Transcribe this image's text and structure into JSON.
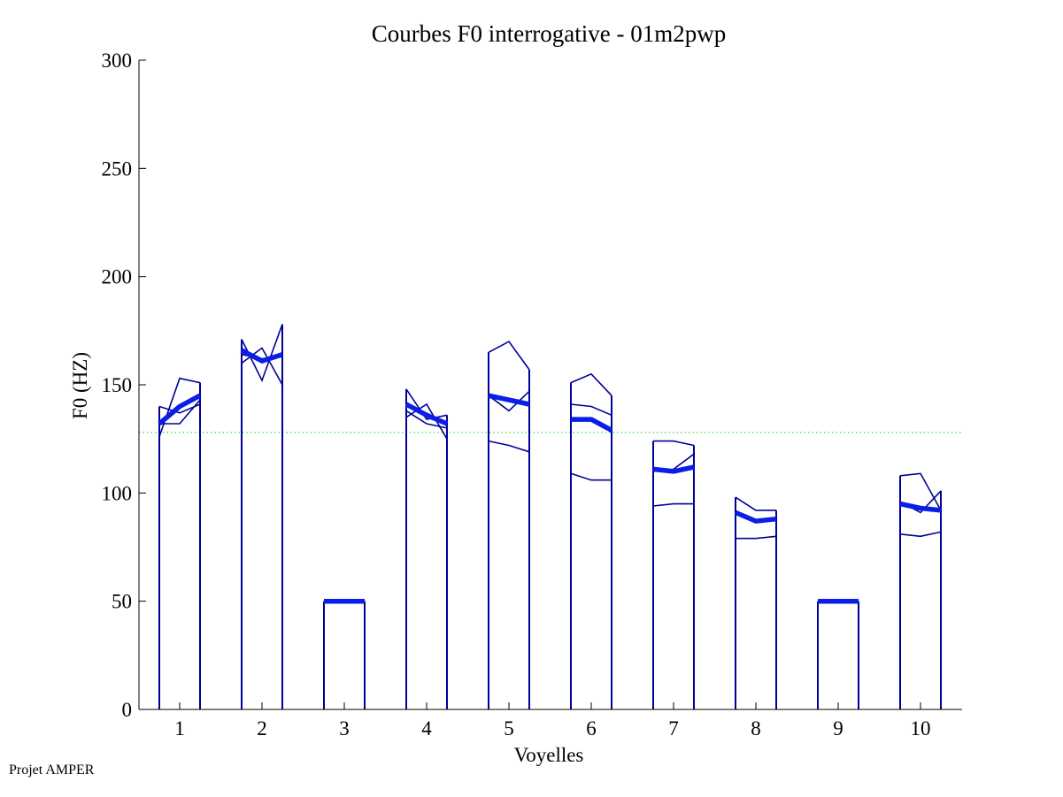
{
  "colors": {
    "contour": "#000099",
    "mean": "#0a1ee6",
    "reference": "#00cc00",
    "axis": "#000000"
  },
  "footer": "Projet AMPER",
  "chart_data": {
    "type": "line",
    "title": "Courbes F0 interrogative - 01m2pwp",
    "xlabel": "Voyelles",
    "ylabel": "F0 (HZ)",
    "ylim": [
      0,
      300
    ],
    "yticks": [
      0,
      50,
      100,
      150,
      200,
      250,
      300
    ],
    "categories": [
      "1",
      "2",
      "3",
      "4",
      "5",
      "6",
      "7",
      "8",
      "9",
      "10"
    ],
    "reference_line": 128,
    "grid": false,
    "vowels": [
      {
        "label": "1",
        "mean": [
          132,
          140,
          145
        ],
        "contours": [
          [
            140,
            137,
            141
          ],
          [
            126,
            153,
            151
          ],
          [
            132,
            132,
            143
          ]
        ]
      },
      {
        "label": "2",
        "mean": [
          166,
          161,
          164
        ],
        "contours": [
          [
            171,
            152,
            178
          ],
          [
            160,
            167,
            150
          ],
          [
            164,
            162,
            163
          ]
        ]
      },
      {
        "label": "3",
        "mean": [
          50,
          50,
          50
        ],
        "contours": [
          [
            50,
            50,
            50
          ]
        ]
      },
      {
        "label": "4",
        "mean": [
          141,
          136,
          132
        ],
        "contours": [
          [
            148,
            134,
            136
          ],
          [
            135,
            141,
            125
          ],
          [
            138,
            132,
            130
          ]
        ]
      },
      {
        "label": "5",
        "mean": [
          145,
          143,
          141
        ],
        "contours": [
          [
            165,
            170,
            157
          ],
          [
            145,
            138,
            147
          ],
          [
            124,
            122,
            119
          ]
        ]
      },
      {
        "label": "6",
        "mean": [
          134,
          134,
          129
        ],
        "contours": [
          [
            151,
            155,
            145
          ],
          [
            141,
            140,
            136
          ],
          [
            109,
            106,
            106
          ]
        ]
      },
      {
        "label": "7",
        "mean": [
          111,
          110,
          112
        ],
        "contours": [
          [
            124,
            124,
            122
          ],
          [
            110,
            111,
            118
          ],
          [
            94,
            95,
            95
          ]
        ]
      },
      {
        "label": "8",
        "mean": [
          91,
          87,
          88
        ],
        "contours": [
          [
            98,
            92,
            92
          ],
          [
            79,
            79,
            80
          ]
        ]
      },
      {
        "label": "9",
        "mean": [
          50,
          50,
          50
        ],
        "contours": [
          [
            50,
            50,
            50
          ]
        ]
      },
      {
        "label": "10",
        "mean": [
          95,
          93,
          92
        ],
        "contours": [
          [
            108,
            109,
            92
          ],
          [
            96,
            91,
            101
          ],
          [
            81,
            80,
            82
          ]
        ]
      }
    ]
  }
}
